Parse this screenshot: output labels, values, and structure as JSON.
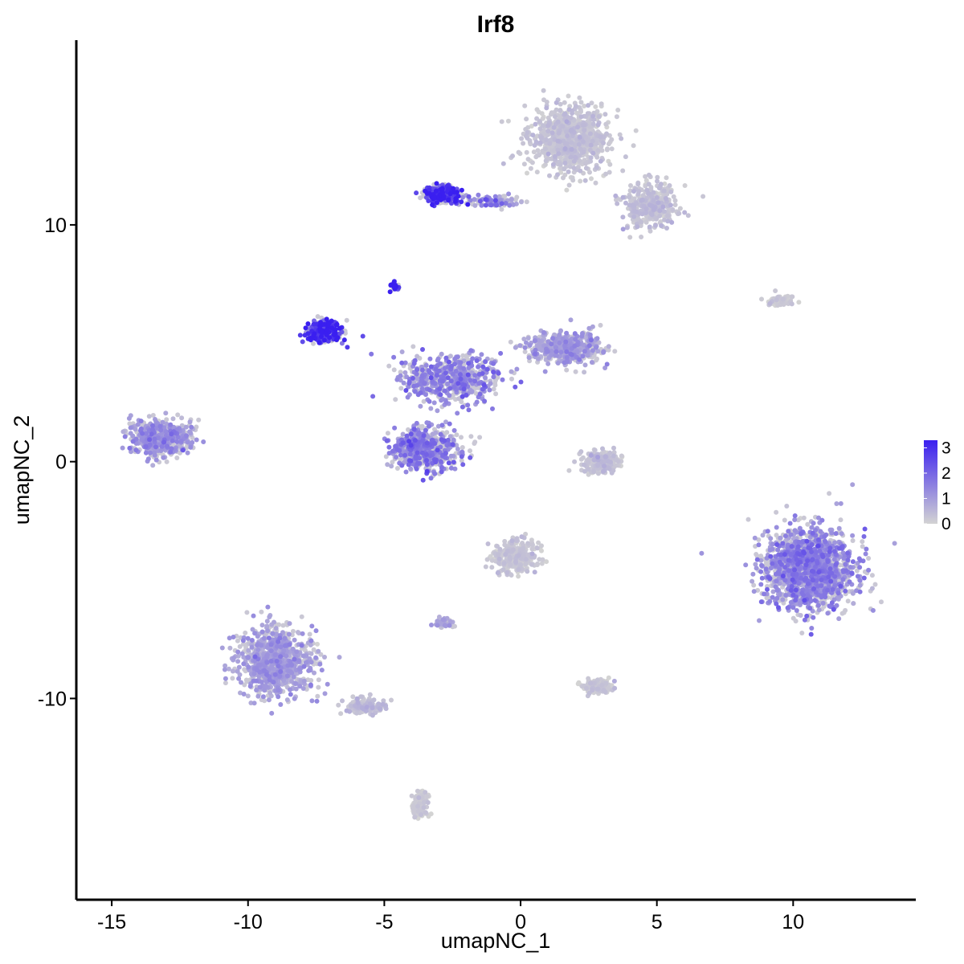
{
  "chart_data": {
    "type": "scatter",
    "title": "Irf8",
    "xlabel": "umapNC_1",
    "ylabel": "umapNC_2",
    "xlim": [
      -16.3,
      14.5
    ],
    "ylim": [
      -18.5,
      17.8
    ],
    "x_ticks": [
      -15,
      -10,
      -5,
      0,
      5,
      10
    ],
    "y_ticks": [
      -10,
      0,
      10
    ],
    "x_tick_labels": [
      "-15",
      "-10",
      "-5",
      "0",
      "5",
      "10"
    ],
    "y_tick_labels": [
      "-10",
      "0",
      "10"
    ],
    "grid": false,
    "color_scale": {
      "low_color": "#d3d3d3",
      "high_color": "#3a1ff0",
      "min": 0,
      "max": 3.3,
      "breaks": [
        0,
        1,
        2,
        3
      ],
      "break_labels": [
        "0",
        "1",
        "2",
        "3"
      ],
      "legend_position": "right"
    },
    "clusters": [
      {
        "id": "top-gray-blob",
        "center": [
          1.8,
          13.6
        ],
        "spread": [
          1.3,
          1.2
        ],
        "n": 900,
        "expr": 0.25
      },
      {
        "id": "top-gray-arm",
        "center": [
          4.8,
          10.8
        ],
        "spread": [
          0.9,
          0.9
        ],
        "n": 350,
        "expr": 0.35
      },
      {
        "id": "top-left-high",
        "center": [
          -2.9,
          11.3
        ],
        "spread": [
          0.55,
          0.35
        ],
        "n": 280,
        "expr": 2.6
      },
      {
        "id": "bridge-left",
        "center": [
          -1.0,
          11.0
        ],
        "spread": [
          0.9,
          0.2
        ],
        "n": 90,
        "expr": 1.4
      },
      {
        "id": "spike-high",
        "center": [
          -4.6,
          7.4
        ],
        "spread": [
          0.15,
          0.15
        ],
        "n": 40,
        "expr": 3.1
      },
      {
        "id": "left-high",
        "center": [
          -7.2,
          5.5
        ],
        "spread": [
          0.6,
          0.4
        ],
        "n": 300,
        "expr": 2.5
      },
      {
        "id": "central-x",
        "center": [
          -2.5,
          3.5
        ],
        "spread": [
          1.6,
          0.9
        ],
        "n": 600,
        "expr": 1.3
      },
      {
        "id": "central-right",
        "center": [
          1.6,
          4.8
        ],
        "spread": [
          1.2,
          0.6
        ],
        "n": 500,
        "expr": 0.9
      },
      {
        "id": "central-lower",
        "center": [
          -3.5,
          0.5
        ],
        "spread": [
          1.1,
          0.8
        ],
        "n": 600,
        "expr": 1.4
      },
      {
        "id": "far-left",
        "center": [
          -13.2,
          1.0
        ],
        "spread": [
          1.0,
          0.7
        ],
        "n": 500,
        "expr": 1.1
      },
      {
        "id": "right-big",
        "center": [
          10.6,
          -4.5
        ],
        "spread": [
          1.5,
          1.5
        ],
        "n": 1500,
        "expr": 1.3
      },
      {
        "id": "lower-left",
        "center": [
          -9.0,
          -8.5
        ],
        "spread": [
          1.2,
          1.3
        ],
        "n": 900,
        "expr": 0.9
      },
      {
        "id": "lower-left-tail",
        "center": [
          -5.7,
          -10.3
        ],
        "spread": [
          0.7,
          0.3
        ],
        "n": 120,
        "expr": 0.4
      },
      {
        "id": "bottom-gray",
        "center": [
          -3.7,
          -14.5
        ],
        "spread": [
          0.25,
          0.5
        ],
        "n": 150,
        "expr": 0.05
      },
      {
        "id": "center-gray",
        "center": [
          -0.2,
          -4.0
        ],
        "spread": [
          0.7,
          0.6
        ],
        "n": 300,
        "expr": 0.2
      },
      {
        "id": "small-gray-1",
        "center": [
          2.9,
          0.0
        ],
        "spread": [
          0.6,
          0.4
        ],
        "n": 200,
        "expr": 0.3
      },
      {
        "id": "small-gray-2",
        "center": [
          2.8,
          -9.5
        ],
        "spread": [
          0.5,
          0.3
        ],
        "n": 120,
        "expr": 0.2
      },
      {
        "id": "small-gray-3",
        "center": [
          9.5,
          6.8
        ],
        "spread": [
          0.5,
          0.2
        ],
        "n": 70,
        "expr": 0.1
      },
      {
        "id": "small-left-purple",
        "center": [
          -2.8,
          -6.8
        ],
        "spread": [
          0.3,
          0.2
        ],
        "n": 50,
        "expr": 0.8
      }
    ]
  }
}
